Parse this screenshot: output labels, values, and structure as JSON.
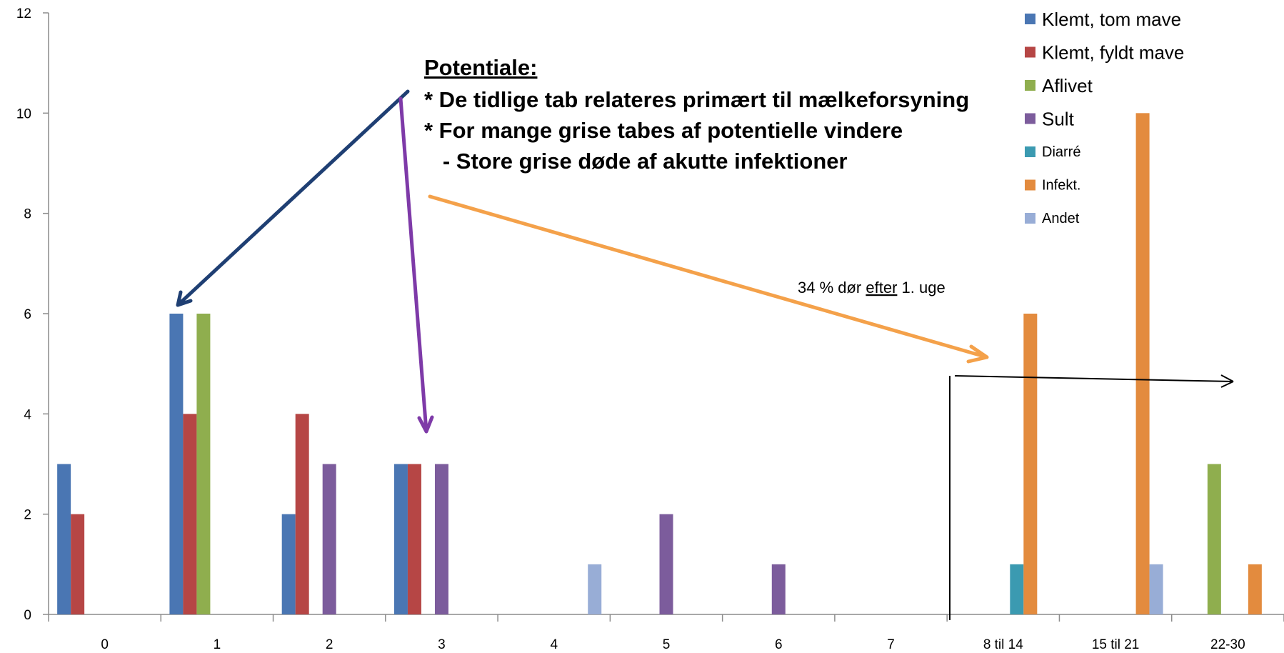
{
  "chart_data": {
    "type": "bar",
    "categories": [
      "0",
      "1",
      "2",
      "3",
      "4",
      "5",
      "6",
      "7",
      "8 til 14",
      "15 til 21",
      "22-30"
    ],
    "ylim": [
      0,
      12
    ],
    "yticks": [
      0,
      2,
      4,
      6,
      8,
      10,
      12
    ],
    "grid": false,
    "legend_position": "top-right",
    "series": [
      {
        "name": "Klemt, tom mave",
        "color": "#4a76b3",
        "values": [
          3,
          6,
          2,
          3,
          0,
          0,
          0,
          0,
          0,
          0,
          0
        ]
      },
      {
        "name": "Klemt, fyldt mave",
        "color": "#b64645",
        "values": [
          2,
          4,
          4,
          3,
          0,
          0,
          0,
          0,
          0,
          0,
          0
        ]
      },
      {
        "name": "Aflivet",
        "color": "#8fae4e",
        "values": [
          0,
          6,
          0,
          0,
          0,
          0,
          0,
          0,
          0,
          0,
          3
        ]
      },
      {
        "name": "Sult",
        "color": "#7c5c9c",
        "values": [
          0,
          0,
          3,
          3,
          0,
          2,
          1,
          0,
          0,
          0,
          0
        ]
      },
      {
        "name": "Diarré",
        "color": "#3b9ab1",
        "values": [
          0,
          0,
          0,
          0,
          0,
          0,
          0,
          0,
          1,
          0,
          0
        ]
      },
      {
        "name": "Infekt.",
        "color": "#e38b3e",
        "values": [
          0,
          0,
          0,
          0,
          0,
          0,
          0,
          0,
          6,
          10,
          1
        ]
      },
      {
        "name": "Andet",
        "color": "#98add6",
        "values": [
          0,
          0,
          0,
          0,
          1,
          0,
          0,
          0,
          0,
          1,
          0
        ]
      }
    ],
    "annotations": {
      "heading": "Potentiale:",
      "lines": [
        "* De tidlige tab relateres primært til mælkeforsyning",
        "* For mange grise tabes af potentielle vindere",
        "   - Store grise døde af akutte infektioner"
      ],
      "note_before": "34 % dør ",
      "note_underlined": "efter",
      "note_after": " 1. uge"
    },
    "arrow_colors": {
      "blue": "#1f3f73",
      "purple": "#7e3aa8",
      "orange": "#f4a14a",
      "black": "#000000"
    }
  }
}
